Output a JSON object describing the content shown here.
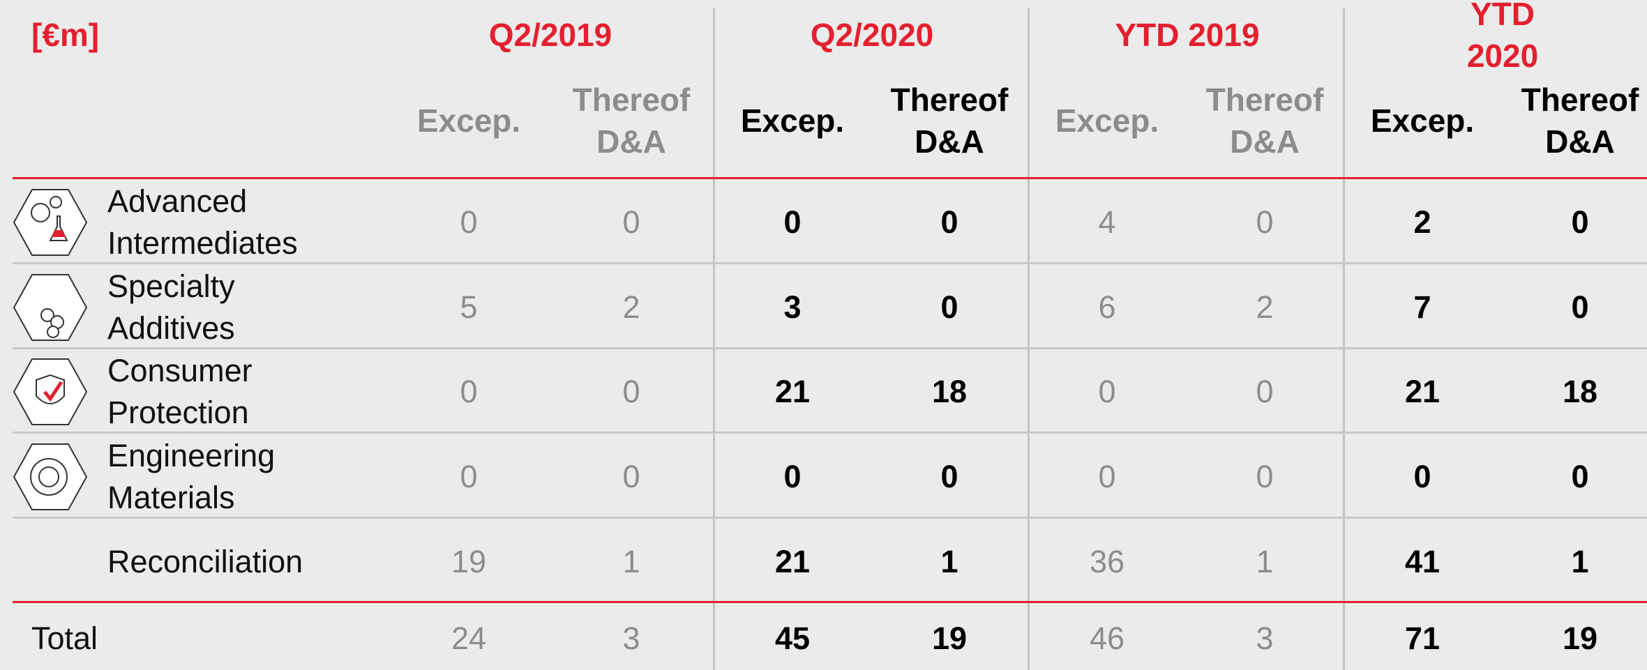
{
  "header": {
    "unit": "[€m]"
  },
  "groups": [
    "Q2/2019",
    "Q2/2020",
    "YTD 2019",
    "YTD 2020"
  ],
  "subheaders": [
    "Excep.",
    "Thereof D&A"
  ],
  "rows": [
    {
      "label": "Advanced Intermediates",
      "values": [
        0,
        0,
        0,
        0,
        4,
        0,
        2,
        0
      ]
    },
    {
      "label": "Specialty Additives",
      "values": [
        5,
        2,
        3,
        0,
        6,
        2,
        7,
        0
      ]
    },
    {
      "label": "Consumer Protection",
      "values": [
        0,
        0,
        21,
        18,
        0,
        0,
        21,
        18
      ]
    },
    {
      "label": "Engineering Materials",
      "values": [
        0,
        0,
        0,
        0,
        0,
        0,
        0,
        0
      ]
    },
    {
      "label": "Reconciliation",
      "values": [
        19,
        1,
        21,
        1,
        36,
        1,
        41,
        1
      ]
    }
  ],
  "total": {
    "label": "Total",
    "values": [
      24,
      3,
      45,
      19,
      46,
      3,
      71,
      19
    ]
  }
}
